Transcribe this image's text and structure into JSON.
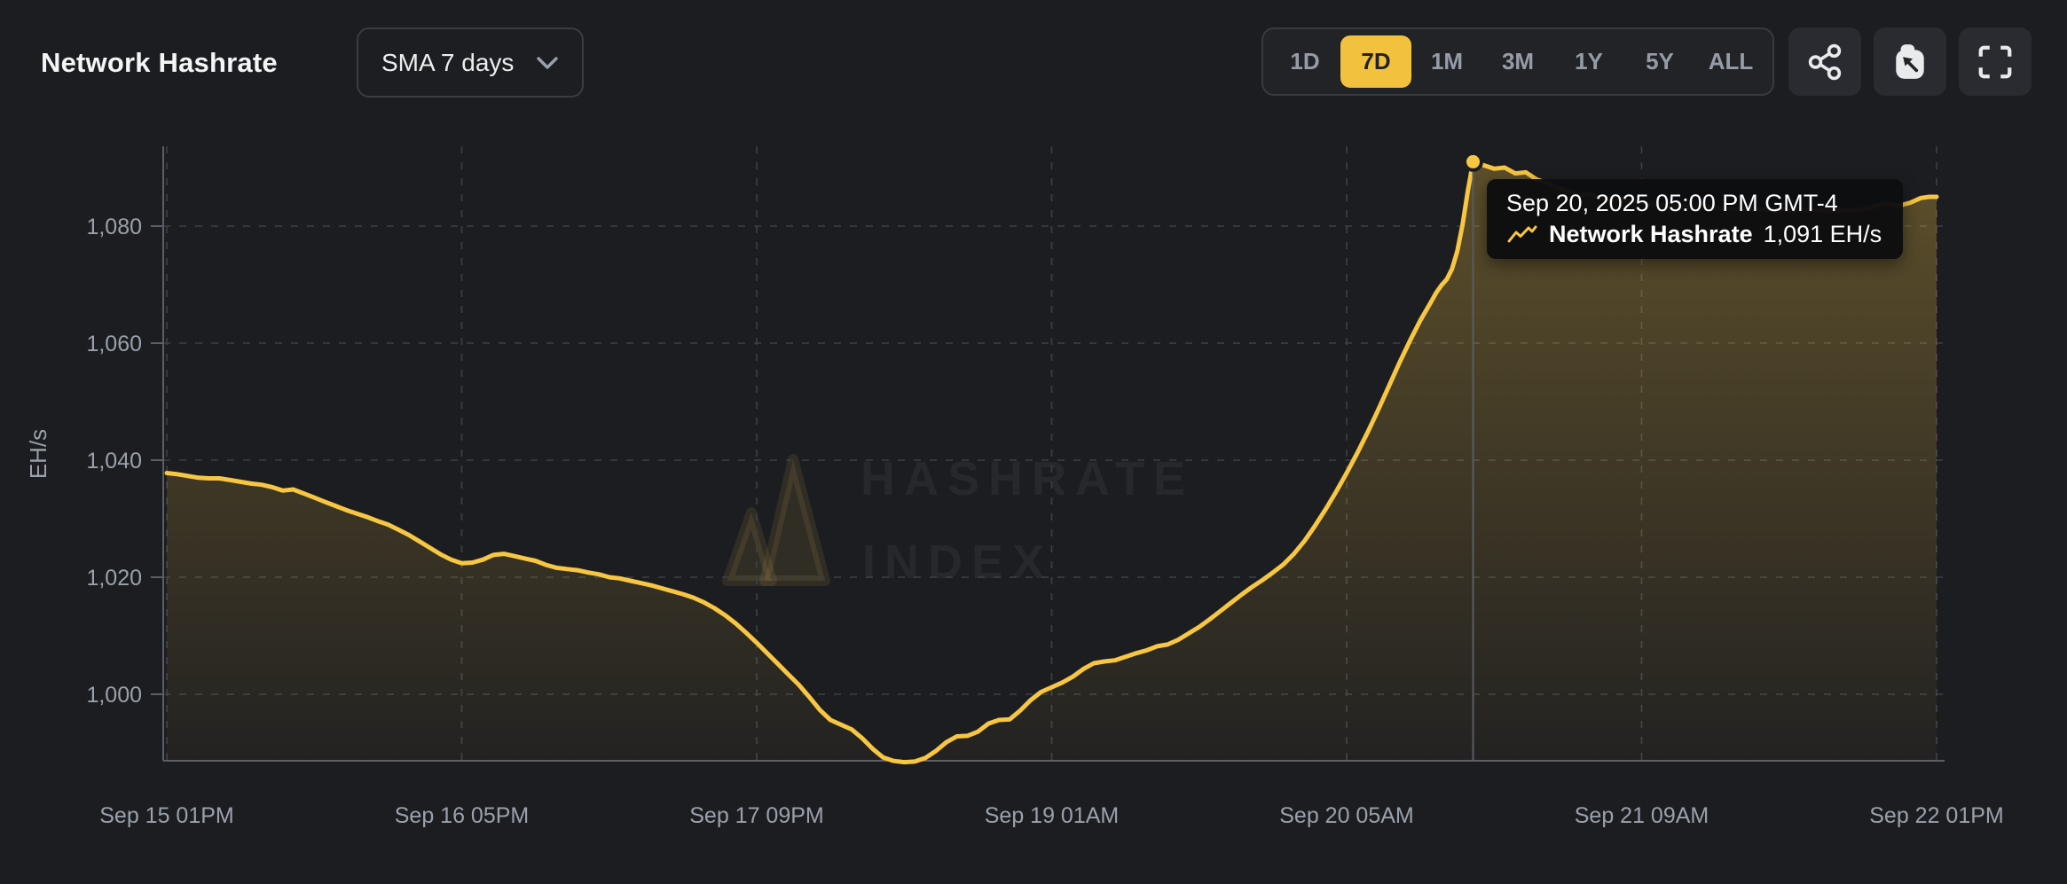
{
  "header": {
    "title": "Network Hashrate",
    "sma_selector": {
      "label": "SMA 7 days"
    },
    "ranges": [
      "1D",
      "7D",
      "1M",
      "3M",
      "1Y",
      "5Y",
      "ALL"
    ],
    "active_range": "7D",
    "accent_color": "#F2C23E"
  },
  "tooltip": {
    "timestamp": "Sep 20, 2025 05:00 PM GMT-4",
    "series_name": "Network Hashrate",
    "value": "1,091 EH/s"
  },
  "watermark": {
    "line1": "HASHRATE",
    "line2": "INDEX"
  },
  "chart_data": {
    "type": "area",
    "title": "Network Hashrate",
    "xlabel": "",
    "ylabel": "EH/s",
    "unit": "EH/s",
    "grid": "dashed",
    "legend": "none",
    "y_ticks": [
      1000,
      1020,
      1040,
      1060,
      1080
    ],
    "ylim": [
      988.6,
      1093
    ],
    "x_range_hours": 168,
    "x_ticks": [
      {
        "t": 0,
        "label": "Sep 15 01PM"
      },
      {
        "t": 28,
        "label": "Sep 16 05PM"
      },
      {
        "t": 56,
        "label": "Sep 17 09PM"
      },
      {
        "t": 84,
        "label": "Sep 19 01AM"
      },
      {
        "t": 112,
        "label": "Sep 20 05AM"
      },
      {
        "t": 140,
        "label": "Sep 21 09AM"
      },
      {
        "t": 168,
        "label": "Sep 22 01PM"
      }
    ],
    "series": [
      {
        "name": "Network Hashrate",
        "points": [
          [
            0,
            1037.8
          ],
          [
            1,
            1037.6
          ],
          [
            2,
            1037.3
          ],
          [
            3,
            1037.0
          ],
          [
            4,
            1036.9
          ],
          [
            5,
            1036.9
          ],
          [
            6,
            1036.6
          ],
          [
            7,
            1036.3
          ],
          [
            8,
            1036.0
          ],
          [
            9,
            1035.8
          ],
          [
            10,
            1035.4
          ],
          [
            11,
            1034.8
          ],
          [
            12,
            1035.0
          ],
          [
            13,
            1034.3
          ],
          [
            14,
            1033.6
          ],
          [
            15,
            1032.9
          ],
          [
            16,
            1032.2
          ],
          [
            17,
            1031.5
          ],
          [
            18,
            1030.9
          ],
          [
            19,
            1030.3
          ],
          [
            20,
            1029.6
          ],
          [
            21,
            1029.0
          ],
          [
            22,
            1028.1
          ],
          [
            23,
            1027.2
          ],
          [
            24,
            1026.1
          ],
          [
            25,
            1025.0
          ],
          [
            26,
            1023.9
          ],
          [
            27,
            1023.0
          ],
          [
            28,
            1022.4
          ],
          [
            29,
            1022.5
          ],
          [
            30,
            1023.0
          ],
          [
            31,
            1023.8
          ],
          [
            32,
            1024.0
          ],
          [
            33,
            1023.6
          ],
          [
            34,
            1023.2
          ],
          [
            35,
            1022.8
          ],
          [
            36,
            1022.1
          ],
          [
            37,
            1021.6
          ],
          [
            38,
            1021.4
          ],
          [
            39,
            1021.2
          ],
          [
            40,
            1020.8
          ],
          [
            41,
            1020.5
          ],
          [
            42,
            1020.0
          ],
          [
            43,
            1019.8
          ],
          [
            44,
            1019.4
          ],
          [
            45,
            1019.0
          ],
          [
            46,
            1018.6
          ],
          [
            47,
            1018.1
          ],
          [
            48,
            1017.6
          ],
          [
            49,
            1017.1
          ],
          [
            50,
            1016.5
          ],
          [
            51,
            1015.7
          ],
          [
            52,
            1014.7
          ],
          [
            53,
            1013.5
          ],
          [
            54,
            1012.1
          ],
          [
            55,
            1010.5
          ],
          [
            56,
            1008.8
          ],
          [
            57,
            1007.0
          ],
          [
            58,
            1005.2
          ],
          [
            59,
            1003.4
          ],
          [
            60,
            1001.6
          ],
          [
            61,
            999.5
          ],
          [
            62,
            997.3
          ],
          [
            63,
            995.6
          ],
          [
            64,
            994.8
          ],
          [
            65,
            994.0
          ],
          [
            66,
            992.5
          ],
          [
            67,
            990.7
          ],
          [
            68,
            989.2
          ],
          [
            69,
            988.6
          ],
          [
            70,
            988.4
          ],
          [
            71,
            988.5
          ],
          [
            72,
            989.1
          ],
          [
            73,
            990.3
          ],
          [
            74,
            991.8
          ],
          [
            75,
            992.8
          ],
          [
            76,
            992.9
          ],
          [
            77,
            993.6
          ],
          [
            78,
            995.0
          ],
          [
            79,
            995.6
          ],
          [
            80,
            995.7
          ],
          [
            81,
            997.2
          ],
          [
            82,
            999.0
          ],
          [
            83,
            1000.4
          ],
          [
            84,
            1001.2
          ],
          [
            85,
            1002.0
          ],
          [
            86,
            1003.0
          ],
          [
            87,
            1004.3
          ],
          [
            88,
            1005.3
          ],
          [
            89,
            1005.6
          ],
          [
            90,
            1005.8
          ],
          [
            91,
            1006.4
          ],
          [
            92,
            1007.0
          ],
          [
            93,
            1007.5
          ],
          [
            94,
            1008.2
          ],
          [
            95,
            1008.5
          ],
          [
            96,
            1009.3
          ],
          [
            97,
            1010.4
          ],
          [
            98,
            1011.5
          ],
          [
            99,
            1012.8
          ],
          [
            100,
            1014.2
          ],
          [
            101,
            1015.6
          ],
          [
            102,
            1017.0
          ],
          [
            103,
            1018.3
          ],
          [
            104,
            1019.5
          ],
          [
            105,
            1020.8
          ],
          [
            106,
            1022.2
          ],
          [
            107,
            1024.0
          ],
          [
            108,
            1026.2
          ],
          [
            109,
            1028.8
          ],
          [
            110,
            1031.6
          ],
          [
            111,
            1034.6
          ],
          [
            112,
            1037.8
          ],
          [
            113,
            1041.2
          ],
          [
            114,
            1044.8
          ],
          [
            115,
            1048.6
          ],
          [
            116,
            1052.6
          ],
          [
            117,
            1056.6
          ],
          [
            118,
            1060.4
          ],
          [
            119,
            1063.9
          ],
          [
            120,
            1067.0
          ],
          [
            120.5,
            1068.6
          ],
          [
            121,
            1069.9
          ],
          [
            121.5,
            1070.9
          ],
          [
            122,
            1072.7
          ],
          [
            122.5,
            1075.7
          ],
          [
            123,
            1080.2
          ],
          [
            123.5,
            1086.0
          ],
          [
            124,
            1091.0
          ],
          [
            124.5,
            1090.8
          ],
          [
            125,
            1090.4
          ],
          [
            126,
            1089.8
          ],
          [
            127,
            1090.0
          ],
          [
            128,
            1089.0
          ],
          [
            129,
            1089.2
          ],
          [
            130,
            1088.0
          ],
          [
            131,
            1087.4
          ],
          [
            132,
            1086.6
          ],
          [
            133,
            1086.0
          ],
          [
            134,
            1085.3
          ],
          [
            135,
            1085.5
          ],
          [
            136,
            1084.9
          ],
          [
            137,
            1084.5
          ],
          [
            138,
            1084.7
          ],
          [
            139,
            1084.1
          ],
          [
            140,
            1083.9
          ],
          [
            142,
            1083.6
          ],
          [
            144,
            1083.3
          ],
          [
            146,
            1083.4
          ],
          [
            148,
            1083.0
          ],
          [
            150,
            1082.9
          ],
          [
            152,
            1082.8
          ],
          [
            154,
            1082.7
          ],
          [
            156,
            1082.8
          ],
          [
            158,
            1082.6
          ],
          [
            160,
            1082.7
          ],
          [
            161,
            1082.8
          ],
          [
            162,
            1083.3
          ],
          [
            163,
            1083.9
          ],
          [
            164,
            1083.6
          ],
          [
            164.5,
            1083.5
          ],
          [
            165.5,
            1084.0
          ],
          [
            166.5,
            1084.8
          ],
          [
            167.3,
            1085.0
          ],
          [
            168,
            1085.0
          ]
        ]
      }
    ],
    "highlight": {
      "t": 124,
      "value": 1091,
      "timestamp": "Sep 20, 2025 05:00 PM GMT-4",
      "display_value": "1,091 EH/s"
    },
    "colors": {
      "line": "#F7C643",
      "area_top": "rgba(247,198,67,0.30)",
      "area_bottom": "rgba(247,198,67,0.03)",
      "grid": "#3d4047",
      "axis": "#5a5e66",
      "tick_text": "#9aa1ac",
      "crosshair": "#585c65",
      "marker_fill": "#F7C643",
      "marker_ring": "#1c1d20"
    }
  }
}
